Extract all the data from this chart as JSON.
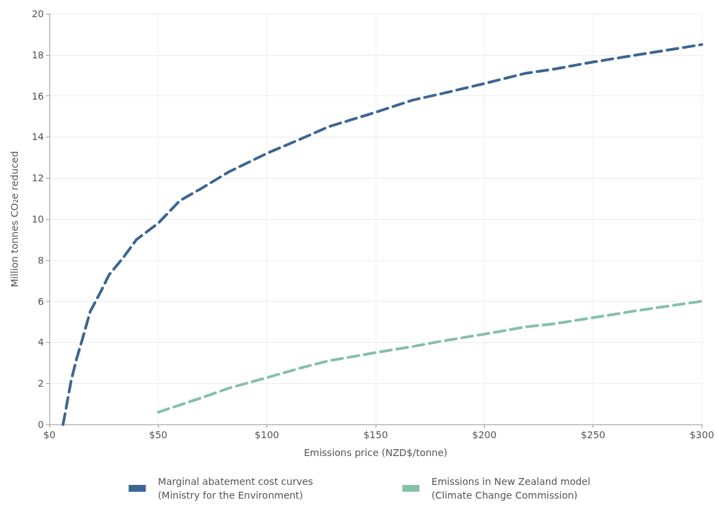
{
  "chart_data": {
    "type": "line",
    "xlabel": "Emissions price (NZD$/tonne)",
    "ylabel": "Million tonnes CO₂e reduced",
    "xlim": [
      0,
      300
    ],
    "xticks": [
      {
        "value": 0,
        "label": "$0"
      },
      {
        "value": 50,
        "label": "$50"
      },
      {
        "value": 100,
        "label": "$100"
      },
      {
        "value": 150,
        "label": "$150"
      },
      {
        "value": 200,
        "label": "$200"
      },
      {
        "value": 250,
        "label": "$250"
      },
      {
        "value": 300,
        "label": "$300"
      }
    ],
    "ylim": [
      0,
      20
    ],
    "yticks": [
      0,
      2,
      4,
      6,
      8,
      10,
      12,
      14,
      16,
      18,
      20
    ],
    "grid": true,
    "legend": "bottom",
    "marker": "none",
    "line_style": "dashed",
    "series": [
      {
        "name": "Marginal abatement cost curves\n(Ministry for the Environment)",
        "color": "#3d6591",
        "x": [
          6.25,
          7.5,
          10,
          12.5,
          15,
          18.75,
          23.75,
          27.5,
          33.75,
          40,
          50,
          60,
          70,
          82.5,
          100,
          115.5,
          128.4,
          150,
          167.2,
          180,
          200,
          218.9,
          231.8,
          250,
          270.5,
          300
        ],
        "values": [
          0,
          0.7,
          2.15,
          3.2,
          4.1,
          5.5,
          6.5,
          7.3,
          8.1,
          9.0,
          9.8,
          10.9,
          11.5,
          12.3,
          13.2,
          13.9,
          14.5,
          15.2,
          15.8,
          16.1,
          16.6,
          17.1,
          17.3,
          17.65,
          18.0,
          18.5
        ]
      },
      {
        "name": "Emissions in New Zealand model\n(Climate Change Commission)",
        "color": "#86c0a8",
        "x": [
          50,
          60,
          70,
          82.5,
          100,
          115.5,
          128.4,
          150,
          167.2,
          180,
          200,
          218.9,
          231.8,
          250,
          270.5,
          300
        ],
        "values": [
          0.6,
          0.95,
          1.3,
          1.77,
          2.28,
          2.75,
          3.1,
          3.5,
          3.8,
          4.05,
          4.4,
          4.75,
          4.9,
          5.2,
          5.55,
          6.0
        ]
      }
    ]
  }
}
